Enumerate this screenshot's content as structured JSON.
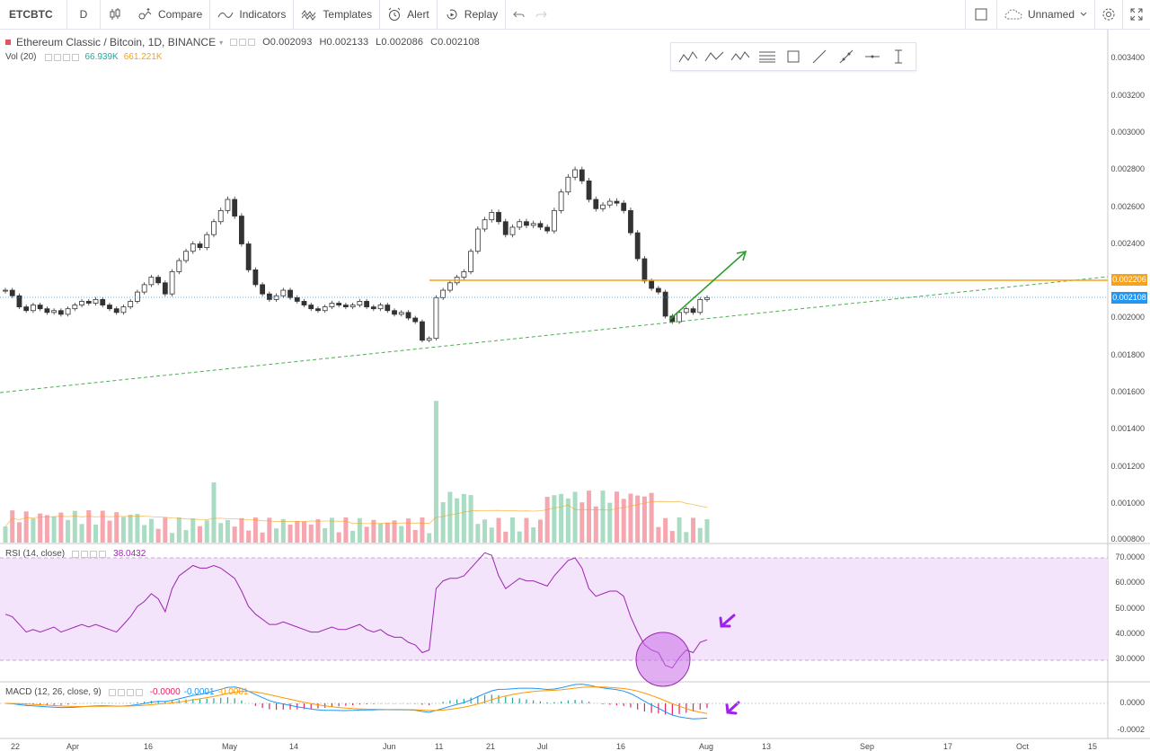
{
  "toolbar": {
    "symbol": "ETCBTC",
    "interval": "D",
    "compare": "Compare",
    "indicators": "Indicators",
    "templates": "Templates",
    "alert": "Alert",
    "replay": "Replay",
    "layout_name": "Unnamed"
  },
  "legend": {
    "title": "Ethereum Classic / Bitcoin, 1D, BINANCE",
    "open": "O0.002093",
    "high": "H0.002133",
    "low": "L0.002086",
    "close": "C0.002108",
    "vol_label": "Vol (20)",
    "vol_value": "66.939K",
    "vol_ma": "661.221K",
    "rsi_label": "RSI (14, close)",
    "rsi_value": "38.0432",
    "macd_label": "MACD (12, 26, close, 9)",
    "macd_hist": "-0.0000",
    "macd_line": "-0.0001",
    "macd_signal": "-0.0001"
  },
  "price_axis": [
    "0.003400",
    "0.003200",
    "0.003000",
    "0.002800",
    "0.002600",
    "0.002400",
    "0.002000",
    "0.001800",
    "0.001600",
    "0.001400",
    "0.001200",
    "0.001000",
    "0.000800"
  ],
  "price_tags": {
    "resistance": "0.002206",
    "last": "0.002108"
  },
  "rsi_axis": [
    "70.0000",
    "60.0000",
    "50.0000",
    "40.0000",
    "30.0000"
  ],
  "macd_axis": [
    "0.0000",
    "-0.0002"
  ],
  "time_axis": [
    "22",
    "Apr",
    "16",
    "May",
    "14",
    "Jun",
    "11",
    "21",
    "Jul",
    "16",
    "Aug",
    "13",
    "Sep",
    "17",
    "Oct",
    "15"
  ],
  "colors": {
    "up": "#53b987",
    "down": "#eb4d5c",
    "accent": "#f7a21b",
    "trend": "#4caf50",
    "rsi": "#9c27b0",
    "macd": "#2196f3",
    "signal": "#ff9800",
    "arrow": "#a020f0"
  },
  "chart_data": {
    "type": "candlestick",
    "closes": [
      0.00215,
      0.00212,
      0.00206,
      0.00204,
      0.00207,
      0.00205,
      0.00203,
      0.00204,
      0.00202,
      0.00205,
      0.00207,
      0.00209,
      0.00208,
      0.0021,
      0.00207,
      0.00205,
      0.00203,
      0.00206,
      0.00209,
      0.00214,
      0.00218,
      0.00222,
      0.00219,
      0.00213,
      0.00225,
      0.00231,
      0.00236,
      0.0024,
      0.00238,
      0.00245,
      0.00252,
      0.00258,
      0.00264,
      0.00255,
      0.0024,
      0.00226,
      0.00218,
      0.00213,
      0.0021,
      0.00212,
      0.00215,
      0.00211,
      0.00209,
      0.00207,
      0.00205,
      0.00204,
      0.00206,
      0.00208,
      0.00207,
      0.00206,
      0.00207,
      0.00209,
      0.00206,
      0.00205,
      0.00207,
      0.00204,
      0.00202,
      0.00203,
      0.002,
      0.00198,
      0.00188,
      0.00189,
      0.00211,
      0.00215,
      0.00219,
      0.00222,
      0.00225,
      0.00236,
      0.00248,
      0.00253,
      0.00257,
      0.00252,
      0.00245,
      0.00249,
      0.00252,
      0.0025,
      0.00251,
      0.00249,
      0.00247,
      0.00258,
      0.00268,
      0.00276,
      0.0028,
      0.00274,
      0.00264,
      0.00259,
      0.00261,
      0.00263,
      0.00262,
      0.00258,
      0.00246,
      0.00232,
      0.0022,
      0.00216,
      0.00214,
      0.00201,
      0.00198,
      0.00203,
      0.00205,
      0.00203,
      0.0021,
      0.00211
    ],
    "rsi": [
      48,
      47,
      44,
      41,
      42,
      41,
      42,
      43,
      41,
      42,
      43,
      44,
      43,
      44,
      43,
      42,
      41,
      44,
      47,
      51,
      53,
      56,
      54,
      49,
      58,
      63,
      65,
      67,
      66,
      66,
      67,
      66,
      64,
      62,
      57,
      51,
      48,
      46,
      44,
      44,
      45,
      44,
      43,
      42,
      41,
      41,
      42,
      43,
      42,
      42,
      43,
      44,
      42,
      41,
      42,
      40,
      39,
      39,
      37,
      36,
      33,
      34,
      58,
      61,
      62,
      62,
      63,
      66,
      69,
      72,
      71,
      63,
      58,
      60,
      62,
      61,
      61,
      60,
      59,
      63,
      66,
      69,
      70,
      66,
      58,
      55,
      56,
      57,
      57,
      55,
      47,
      41,
      36,
      34,
      33,
      28,
      27,
      31,
      34,
      33,
      37,
      38
    ],
    "volume_max": "1.47M"
  }
}
